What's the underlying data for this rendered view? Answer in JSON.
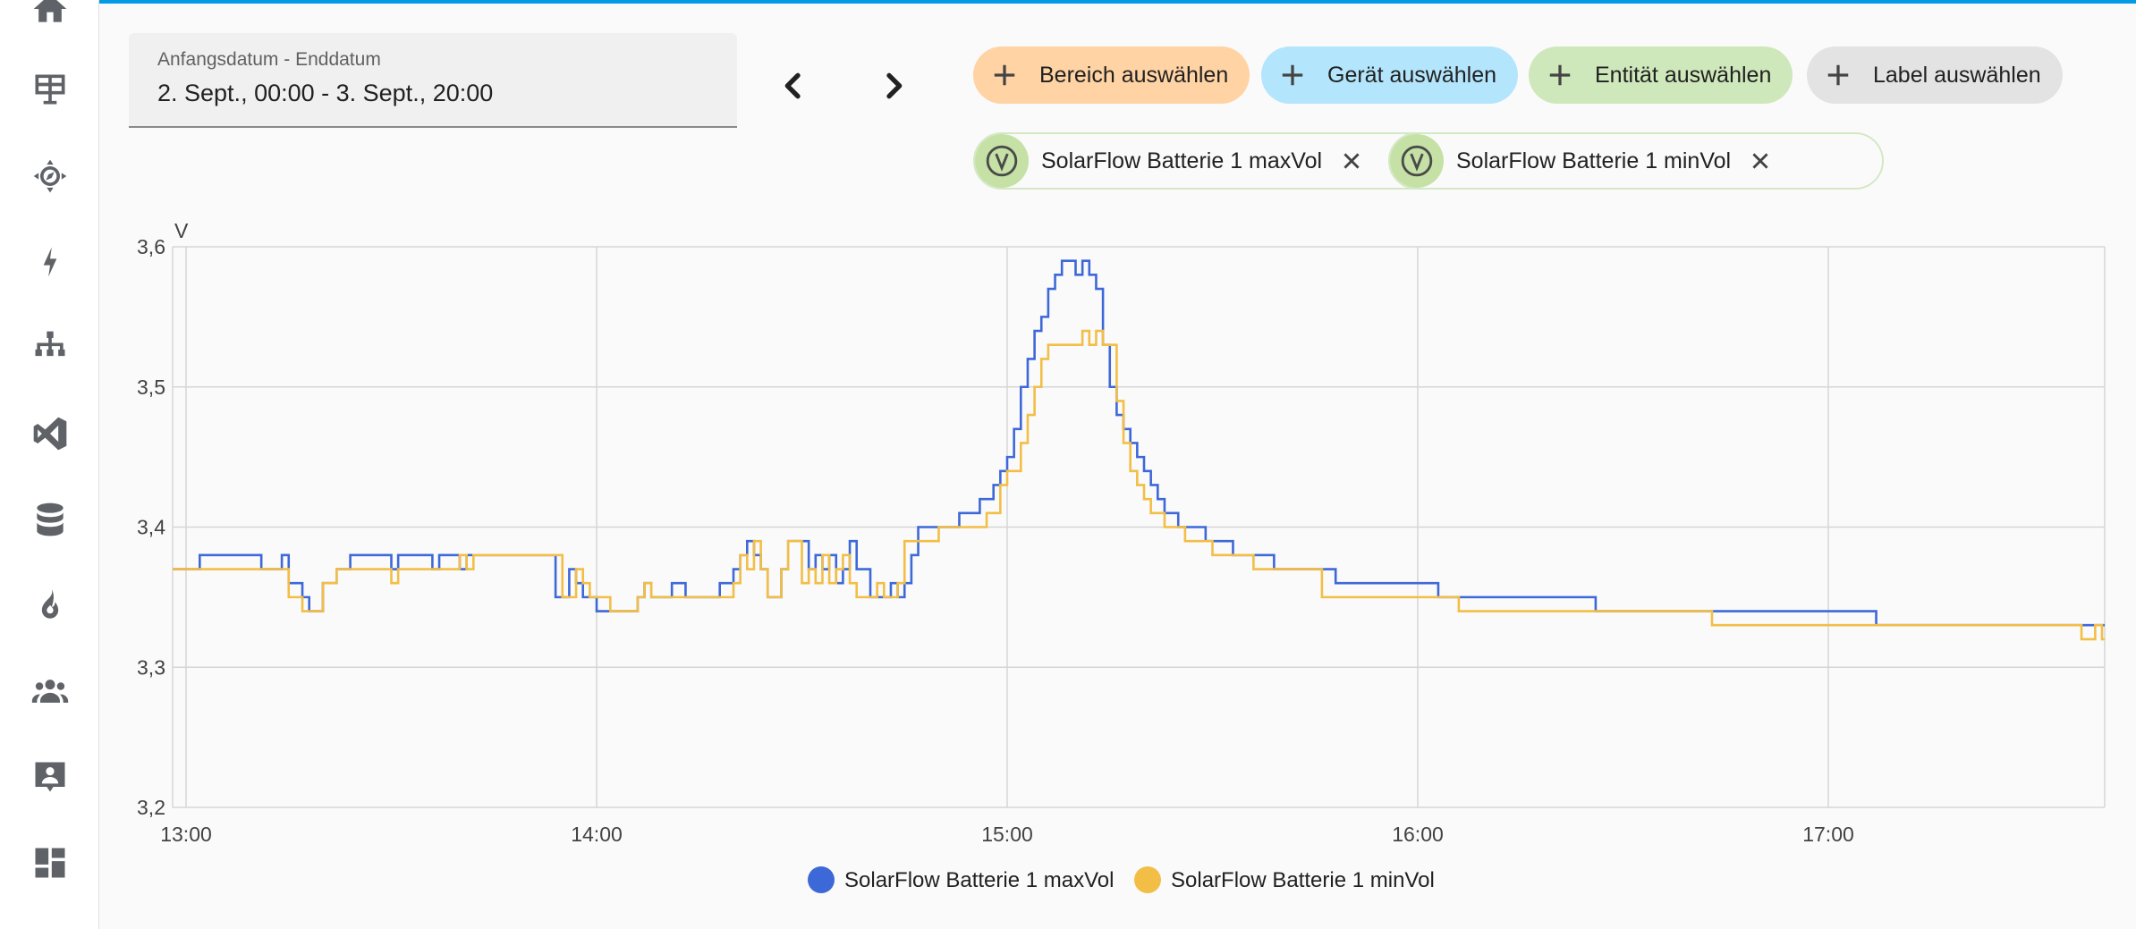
{
  "sidebar": {
    "icons": [
      "home-icon",
      "map-icon",
      "compass-icon",
      "energy-icon",
      "network-icon",
      "vscode-icon",
      "database-icon",
      "fire-icon",
      "people-icon",
      "person-card-icon",
      "dashboard-icon"
    ]
  },
  "date_range": {
    "label": "Anfangsdatum - Enddatum",
    "value": "2. Sept., 00:00 - 3. Sept., 20:00"
  },
  "filters": {
    "area": "Bereich auswählen",
    "device": "Gerät auswählen",
    "entity": "Entität auswählen",
    "label": "Label auswählen"
  },
  "colors": {
    "area": "#ffd3a4",
    "device": "#b3e5fc",
    "entity": "#cfe8bb",
    "label": "#e3e3e3",
    "series_max": "#3d68d8",
    "series_min": "#f2be46"
  },
  "selected_entities": [
    {
      "name": "SolarFlow Batterie 1 maxVol"
    },
    {
      "name": "SolarFlow Batterie 1 minVol"
    }
  ],
  "chart_data": {
    "type": "line",
    "step": true,
    "ylabel": "V",
    "ylim": [
      3.2,
      3.6
    ],
    "yticks": [
      "3,2",
      "3,3",
      "3,4",
      "3,5",
      "3,6"
    ],
    "xticks": [
      "13:00",
      "14:00",
      "15:00",
      "16:00",
      "17:00"
    ],
    "grid": true,
    "legend_position": "bottom",
    "series": [
      {
        "name": "SolarFlow Batterie 1 maxVol",
        "color": "#3d68d8",
        "points": [
          [
            "12:58",
            3.37
          ],
          [
            "13:02",
            3.38
          ],
          [
            "13:11",
            3.37
          ],
          [
            "13:14",
            3.38
          ],
          [
            "13:15",
            3.36
          ],
          [
            "13:17",
            3.35
          ],
          [
            "13:18",
            3.34
          ],
          [
            "13:20",
            3.36
          ],
          [
            "13:22",
            3.37
          ],
          [
            "13:24",
            3.38
          ],
          [
            "13:30",
            3.37
          ],
          [
            "13:31",
            3.38
          ],
          [
            "13:36",
            3.37
          ],
          [
            "13:37",
            3.38
          ],
          [
            "13:40",
            3.37
          ],
          [
            "13:41",
            3.38
          ],
          [
            "13:54",
            3.35
          ],
          [
            "13:56",
            3.37
          ],
          [
            "13:57",
            3.36
          ],
          [
            "13:58",
            3.35
          ],
          [
            "14:00",
            3.34
          ],
          [
            "14:06",
            3.35
          ],
          [
            "14:07",
            3.36
          ],
          [
            "14:08",
            3.35
          ],
          [
            "14:11",
            3.36
          ],
          [
            "14:13",
            3.35
          ],
          [
            "14:18",
            3.36
          ],
          [
            "14:20",
            3.37
          ],
          [
            "14:21",
            3.38
          ],
          [
            "14:22",
            3.39
          ],
          [
            "14:23",
            3.38
          ],
          [
            "14:24",
            3.37
          ],
          [
            "14:25",
            3.35
          ],
          [
            "14:27",
            3.37
          ],
          [
            "14:28",
            3.39
          ],
          [
            "14:30",
            3.39
          ],
          [
            "14:31",
            3.37
          ],
          [
            "14:32",
            3.38
          ],
          [
            "14:33",
            3.37
          ],
          [
            "14:34",
            3.38
          ],
          [
            "14:35",
            3.36
          ],
          [
            "14:36",
            3.37
          ],
          [
            "14:37",
            3.39
          ],
          [
            "14:38",
            3.37
          ],
          [
            "14:40",
            3.35
          ],
          [
            "14:43",
            3.36
          ],
          [
            "14:44",
            3.35
          ],
          [
            "14:45",
            3.36
          ],
          [
            "14:46",
            3.38
          ],
          [
            "14:47",
            3.4
          ],
          [
            "14:51",
            3.4
          ],
          [
            "14:53",
            3.41
          ],
          [
            "14:56",
            3.42
          ],
          [
            "14:58",
            3.43
          ],
          [
            "14:59",
            3.44
          ],
          [
            "15:00",
            3.45
          ],
          [
            "15:01",
            3.47
          ],
          [
            "15:02",
            3.5
          ],
          [
            "15:03",
            3.52
          ],
          [
            "15:04",
            3.54
          ],
          [
            "15:05",
            3.55
          ],
          [
            "15:06",
            3.57
          ],
          [
            "15:07",
            3.58
          ],
          [
            "15:08",
            3.59
          ],
          [
            "15:10",
            3.58
          ],
          [
            "15:11",
            3.59
          ],
          [
            "15:12",
            3.58
          ],
          [
            "15:13",
            3.57
          ],
          [
            "15:14",
            3.53
          ],
          [
            "15:15",
            3.5
          ],
          [
            "15:16",
            3.48
          ],
          [
            "15:17",
            3.47
          ],
          [
            "15:18",
            3.46
          ],
          [
            "15:19",
            3.45
          ],
          [
            "15:20",
            3.44
          ],
          [
            "15:21",
            3.43
          ],
          [
            "15:22",
            3.42
          ],
          [
            "15:23",
            3.41
          ],
          [
            "15:25",
            3.4
          ],
          [
            "15:29",
            3.39
          ],
          [
            "15:33",
            3.38
          ],
          [
            "15:39",
            3.37
          ],
          [
            "15:48",
            3.36
          ],
          [
            "16:03",
            3.35
          ],
          [
            "16:26",
            3.34
          ],
          [
            "16:42",
            3.34
          ],
          [
            "17:07",
            3.33
          ],
          [
            "17:40",
            3.33
          ]
        ]
      },
      {
        "name": "SolarFlow Batterie 1 minVol",
        "color": "#f2be46",
        "points": [
          [
            "12:58",
            3.37
          ],
          [
            "13:15",
            3.35
          ],
          [
            "13:17",
            3.34
          ],
          [
            "13:20",
            3.36
          ],
          [
            "13:22",
            3.37
          ],
          [
            "13:30",
            3.36
          ],
          [
            "13:31",
            3.37
          ],
          [
            "13:40",
            3.38
          ],
          [
            "13:41",
            3.37
          ],
          [
            "13:42",
            3.38
          ],
          [
            "13:55",
            3.35
          ],
          [
            "13:57",
            3.37
          ],
          [
            "13:58",
            3.36
          ],
          [
            "13:59",
            3.35
          ],
          [
            "14:02",
            3.34
          ],
          [
            "14:06",
            3.35
          ],
          [
            "14:07",
            3.36
          ],
          [
            "14:08",
            3.35
          ],
          [
            "14:20",
            3.36
          ],
          [
            "14:21",
            3.38
          ],
          [
            "14:22",
            3.37
          ],
          [
            "14:23",
            3.39
          ],
          [
            "14:24",
            3.37
          ],
          [
            "14:25",
            3.35
          ],
          [
            "14:27",
            3.37
          ],
          [
            "14:28",
            3.39
          ],
          [
            "14:30",
            3.36
          ],
          [
            "14:31",
            3.37
          ],
          [
            "14:32",
            3.36
          ],
          [
            "14:33",
            3.38
          ],
          [
            "14:34",
            3.36
          ],
          [
            "14:35",
            3.37
          ],
          [
            "14:36",
            3.38
          ],
          [
            "14:37",
            3.36
          ],
          [
            "14:38",
            3.35
          ],
          [
            "14:41",
            3.36
          ],
          [
            "14:42",
            3.35
          ],
          [
            "14:44",
            3.36
          ],
          [
            "14:45",
            3.39
          ],
          [
            "14:50",
            3.4
          ],
          [
            "14:57",
            3.41
          ],
          [
            "14:59",
            3.43
          ],
          [
            "15:00",
            3.44
          ],
          [
            "15:02",
            3.46
          ],
          [
            "15:03",
            3.48
          ],
          [
            "15:04",
            3.5
          ],
          [
            "15:05",
            3.52
          ],
          [
            "15:06",
            3.53
          ],
          [
            "15:11",
            3.54
          ],
          [
            "15:12",
            3.53
          ],
          [
            "15:13",
            3.54
          ],
          [
            "15:14",
            3.53
          ],
          [
            "15:16",
            3.49
          ],
          [
            "15:17",
            3.46
          ],
          [
            "15:18",
            3.44
          ],
          [
            "15:19",
            3.43
          ],
          [
            "15:20",
            3.42
          ],
          [
            "15:21",
            3.41
          ],
          [
            "15:23",
            3.4
          ],
          [
            "15:26",
            3.39
          ],
          [
            "15:30",
            3.38
          ],
          [
            "15:36",
            3.37
          ],
          [
            "15:46",
            3.35
          ],
          [
            "16:06",
            3.34
          ],
          [
            "16:43",
            3.33
          ],
          [
            "17:37",
            3.32
          ],
          [
            "17:39",
            3.33
          ],
          [
            "17:40",
            3.32
          ]
        ]
      }
    ]
  }
}
